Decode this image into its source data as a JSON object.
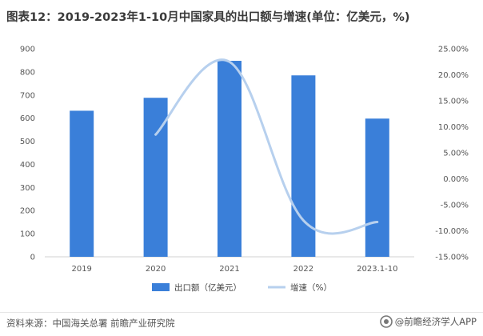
{
  "title": "图表12：2019-2023年1-10月中国家具的出口额与增速(单位：亿美元，%)",
  "source": "资料来源：中国海关总署 前瞻产业研究院",
  "brand": "@前瞻经济学人APP",
  "colors": {
    "bar": "#3a7fd9",
    "line": "#b7d0ee"
  },
  "chart_data": {
    "type": "bar",
    "categories": [
      "2019",
      "2020",
      "2021",
      "2022",
      "2023.1-10"
    ],
    "series": [
      {
        "name": "出口额（亿美元）",
        "type": "bar",
        "axis": "left",
        "values": [
          632,
          688,
          848,
          785,
          598
        ]
      },
      {
        "name": "增速（%）",
        "type": "line",
        "axis": "right",
        "values": [
          null,
          8.5,
          22.5,
          -8.0,
          -8.3
        ]
      }
    ],
    "y_left": {
      "min": 0,
      "max": 900,
      "step": 100,
      "ticks": [
        "0",
        "100",
        "200",
        "300",
        "400",
        "500",
        "600",
        "700",
        "800",
        "900"
      ]
    },
    "y_right": {
      "min": -15,
      "max": 25,
      "step": 5,
      "ticks": [
        "-15.00%",
        "-10.00%",
        "-5.00%",
        "0.00%",
        "5.00%",
        "10.00%",
        "15.00%",
        "20.00%",
        "25.00%"
      ]
    },
    "legend": "bottom-center",
    "grid": false
  }
}
